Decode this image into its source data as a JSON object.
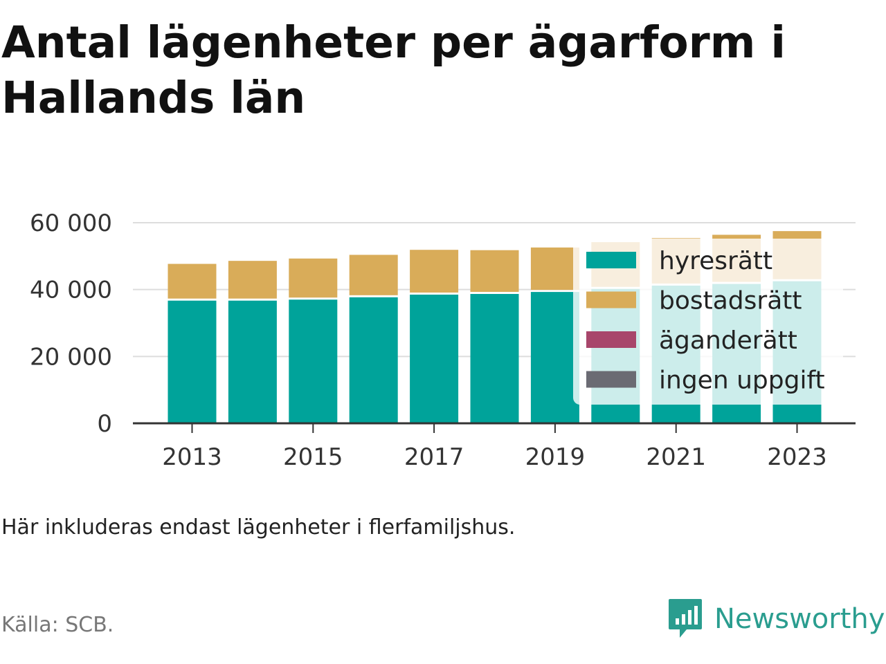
{
  "title": "Antal lägenheter per ägarform i Hallands län",
  "note": "Här inkluderas endast lägenheter i flerfamiljshus.",
  "source": "Källa: SCB.",
  "brand": {
    "name": "Newsworthy",
    "icon": "newsworthy-logo-icon",
    "color": "#2a9d8f"
  },
  "chart_data": {
    "type": "bar",
    "stacked": true,
    "x": [
      2013,
      2014,
      2015,
      2016,
      2017,
      2018,
      2019,
      2020,
      2021,
      2022,
      2023
    ],
    "x_tick_labels": [
      "2013",
      "2015",
      "2017",
      "2019",
      "2021",
      "2023"
    ],
    "y_tick_labels": [
      "0",
      "20 000",
      "40 000",
      "60 000"
    ],
    "y_ticks": [
      0,
      20000,
      40000,
      60000
    ],
    "ylim": [
      0,
      60000
    ],
    "grid": true,
    "legend_position": "right",
    "series": [
      {
        "name": "hyresrätt",
        "color": "#00a39a",
        "values": [
          37000,
          37000,
          37300,
          38000,
          38800,
          39000,
          39600,
          40500,
          41500,
          42000,
          42800
        ]
      },
      {
        "name": "bostadsrätt",
        "color": "#d9ac59",
        "values": [
          11000,
          11900,
          12300,
          12700,
          13400,
          13100,
          13300,
          14000,
          14200,
          14700,
          15000
        ]
      },
      {
        "name": "äganderätt",
        "color": "#a8466b",
        "values": [
          0,
          0,
          0,
          0,
          0,
          0,
          0,
          0,
          0,
          0,
          0
        ]
      },
      {
        "name": "ingen uppgift",
        "color": "#6b6b73",
        "values": [
          0,
          0,
          0,
          0,
          0,
          0,
          0,
          0,
          0,
          0,
          0
        ]
      }
    ]
  }
}
